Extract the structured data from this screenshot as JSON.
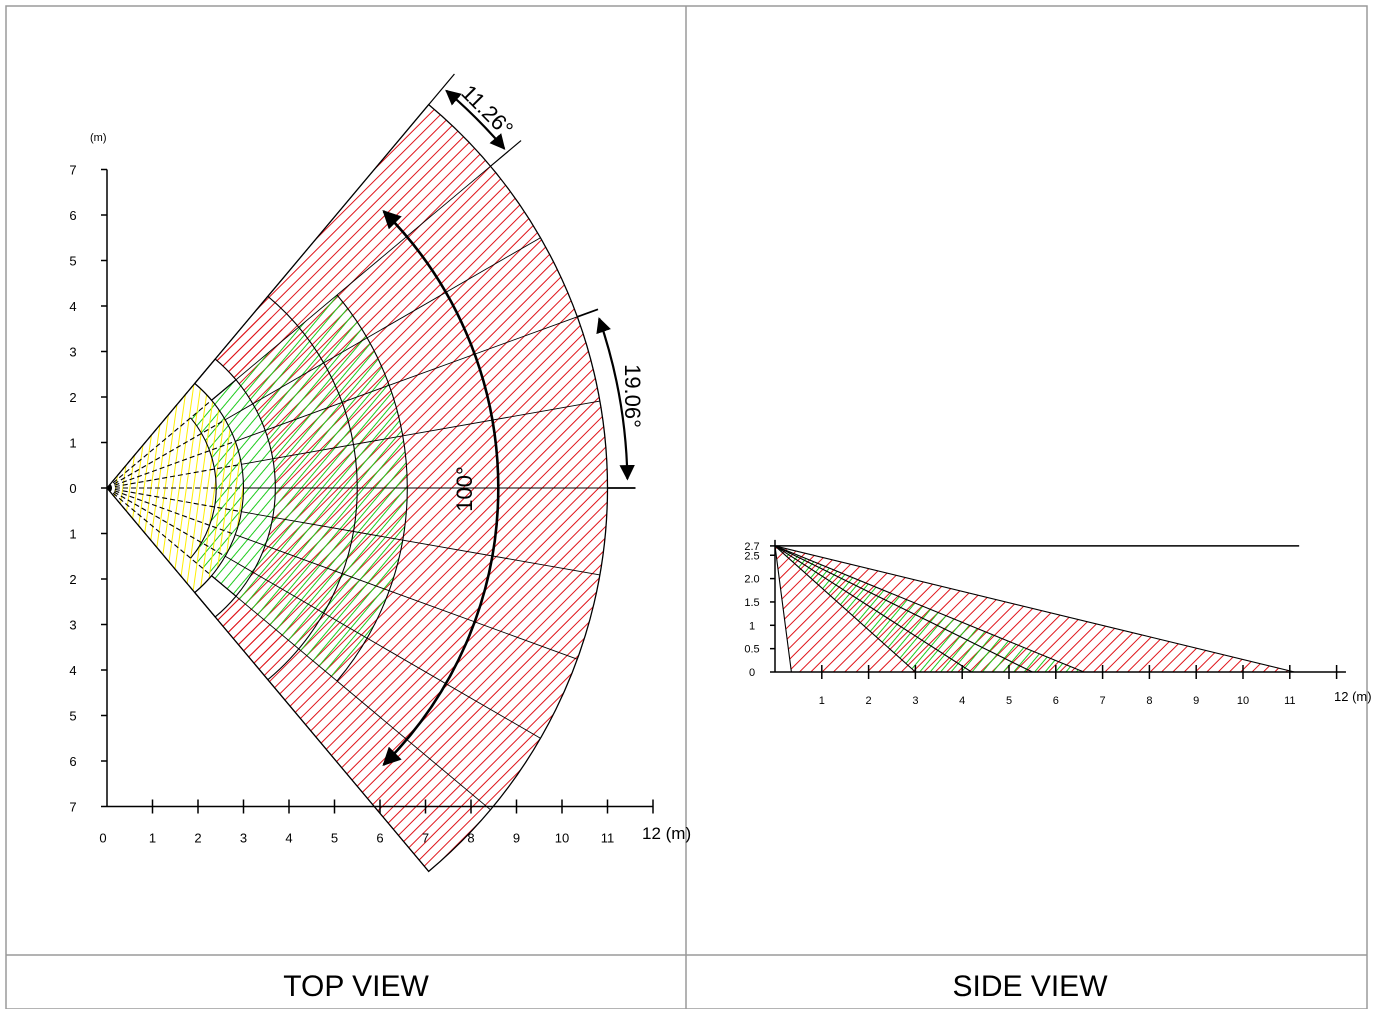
{
  "panels": {
    "top": {
      "caption": "TOP VIEW"
    },
    "side": {
      "caption": "SIDE VIEW"
    }
  },
  "top_view": {
    "y_unit": "(m)",
    "x_end_label": "12 (m)",
    "x_ticks": [
      "0",
      "1",
      "2",
      "3",
      "4",
      "5",
      "6",
      "7",
      "8",
      "9",
      "10",
      "11"
    ],
    "y_ticks_upper": [
      "7",
      "6",
      "5",
      "4",
      "3",
      "2",
      "1",
      "0"
    ],
    "y_ticks_lower": [
      "1",
      "2",
      "3",
      "4",
      "5",
      "6",
      "7"
    ],
    "angles": {
      "total": "100°",
      "beam": "19.06°",
      "edge": "11.26°"
    }
  },
  "side_view": {
    "x_end_label": "12 (m)",
    "x_ticks": [
      "1",
      "2",
      "3",
      "4",
      "5",
      "6",
      "7",
      "8",
      "9",
      "10",
      "11"
    ],
    "y_ticks": [
      "2.7",
      "2.5",
      "2.0",
      "1.5",
      "1",
      "0.5",
      "0"
    ]
  },
  "colors": {
    "far_zone": "#e0141a",
    "mid_zone": "#1ecc1e",
    "near_zone": "#ffee00",
    "border": "#9a9a9a"
  }
}
